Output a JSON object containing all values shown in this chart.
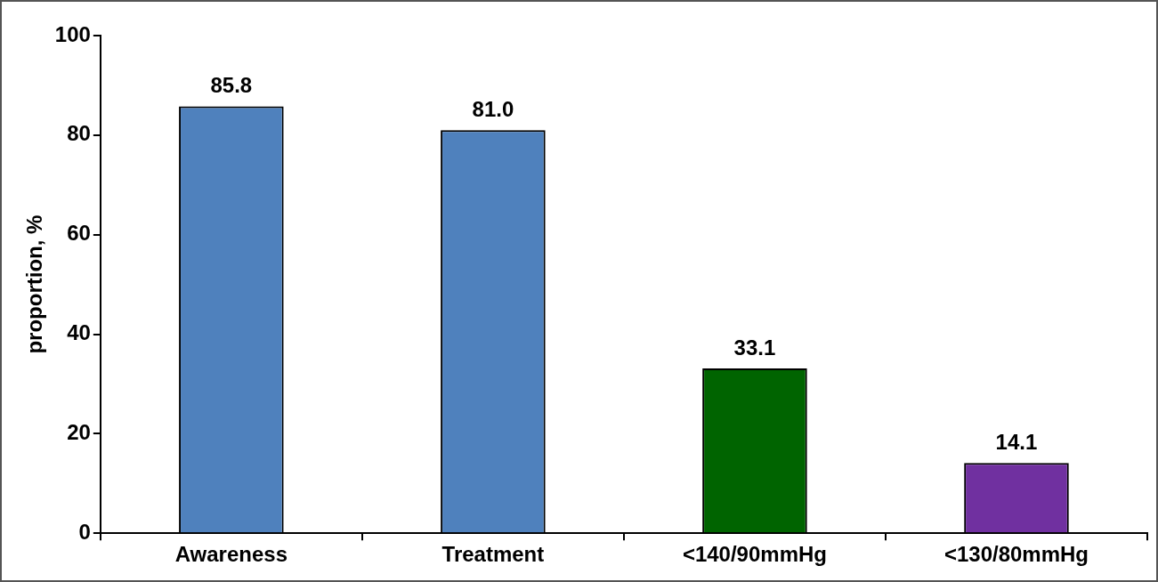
{
  "chart_data": {
    "type": "bar",
    "ylabel": "proportion, %",
    "categories": [
      "Awareness",
      "Treatment",
      "<140/90mmHg",
      "<130/80mmHg"
    ],
    "values": [
      85.8,
      81.0,
      33.1,
      14.1
    ],
    "colors": [
      "#4f81bd",
      "#4f81bd",
      "#006400",
      "#7030a0"
    ],
    "ylim": [
      0,
      100
    ],
    "yticks": [
      0,
      20,
      40,
      60,
      80,
      100
    ],
    "value_labels": [
      "85.8",
      "81.0",
      "33.1",
      "14.1"
    ],
    "grid": false,
    "legend": false
  }
}
